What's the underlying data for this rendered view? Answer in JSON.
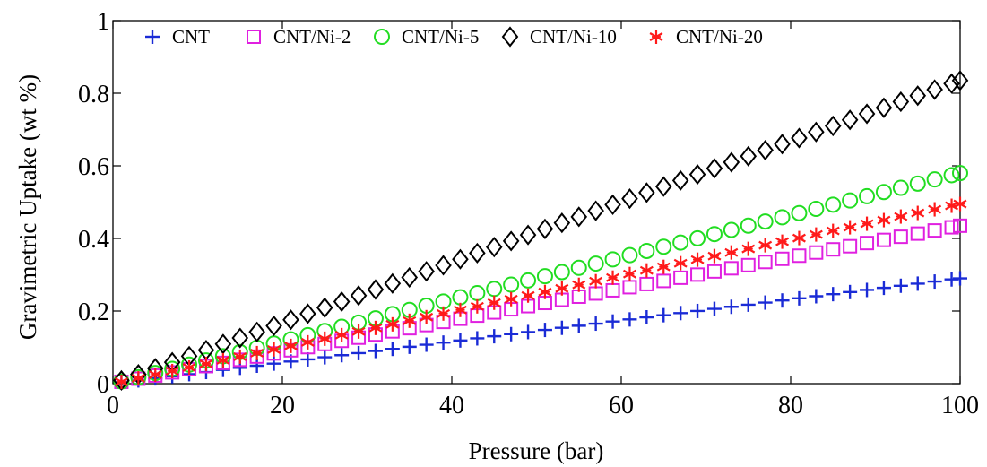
{
  "chart_data": {
    "type": "scatter",
    "title": "",
    "xlabel": "Pressure (bar)",
    "ylabel": "Gravimetric Uptake (wt %)",
    "xlim": [
      0,
      100
    ],
    "ylim": [
      0,
      1
    ],
    "xticks": [
      0,
      20,
      40,
      60,
      80,
      100
    ],
    "yticks": [
      0,
      0.2,
      0.4,
      0.6,
      0.8,
      1
    ],
    "ytick_labels": [
      "0",
      "0.2",
      "0.4",
      "0.6",
      "0.8",
      "1"
    ],
    "grid": false,
    "legend_position": "top",
    "x": [
      1,
      3,
      5,
      7,
      9,
      11,
      13,
      15,
      17,
      19,
      21,
      23,
      25,
      27,
      29,
      31,
      33,
      35,
      37,
      39,
      41,
      43,
      45,
      47,
      49,
      51,
      53,
      55,
      57,
      59,
      61,
      63,
      65,
      67,
      69,
      71,
      73,
      75,
      77,
      79,
      81,
      83,
      85,
      87,
      89,
      91,
      93,
      95,
      97,
      99,
      100
    ],
    "series": [
      {
        "name": "CNT",
        "marker": "plus",
        "color": "#1a2bd6",
        "start": 0.003,
        "end": 0.29
      },
      {
        "name": "CNT/Ni-2",
        "marker": "square",
        "color": "#e020e0",
        "start": 0.005,
        "end": 0.435
      },
      {
        "name": "CNT/Ni-5",
        "marker": "circle",
        "color": "#22dd22",
        "start": 0.006,
        "end": 0.58
      },
      {
        "name": "CNT/Ni-10",
        "marker": "diamond",
        "color": "#000000",
        "start": 0.009,
        "end": 0.835
      },
      {
        "name": "CNT/Ni-20",
        "marker": "asterisk",
        "color": "#ff1a1a",
        "start": 0.005,
        "end": 0.495
      }
    ]
  }
}
